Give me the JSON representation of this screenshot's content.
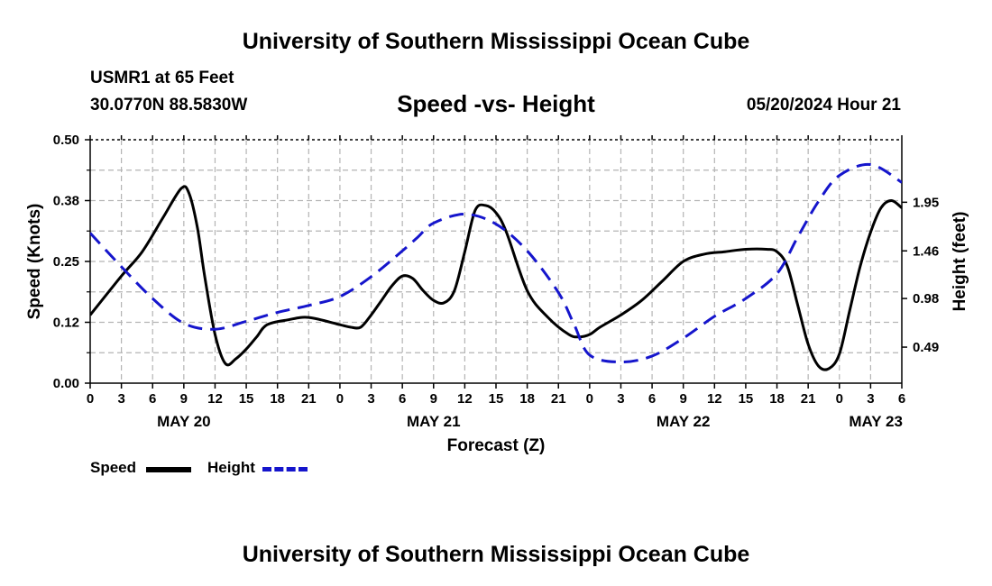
{
  "header": {
    "title": "University of Southern Mississippi Ocean Cube",
    "station_name": "USMR1 at 65 Feet",
    "coordinates": "30.0770N  88.5830W",
    "subtitle": "Speed -vs- Height",
    "datetime": "05/20/2024 Hour 21"
  },
  "footer": {
    "title": "University of Southern Mississippi Ocean Cube"
  },
  "legend": {
    "speed_label": "Speed",
    "height_label": "Height"
  },
  "colors": {
    "speed": "#000000",
    "height": "#1515cc",
    "grid": "#b4b4b4"
  },
  "chart_data": {
    "type": "line",
    "title": "Speed -vs- Height",
    "xlabel": "Forecast (Z)",
    "ylabel": "Speed (Knots)",
    "y2label": "Height (feet)",
    "x_unit": "hours since 00Z May 20",
    "xlim": [
      0,
      78
    ],
    "ylim": [
      0,
      0.5
    ],
    "y2lim": [
      0.127,
      2.58
    ],
    "y_ticks": [
      0,
      0.125,
      0.25,
      0.375,
      0.5
    ],
    "y_tick_labels": [
      "0.00",
      "0.12",
      "0.25",
      "0.38",
      "0.50"
    ],
    "y2_ticks": [
      0.49,
      0.98,
      1.46,
      1.95
    ],
    "y2_tick_labels": [
      "0.49",
      "0.98",
      "1.46",
      "1.95"
    ],
    "x_ticks": [
      0,
      3,
      6,
      9,
      12,
      15,
      18,
      21,
      24,
      27,
      30,
      33,
      36,
      39,
      42,
      45,
      48,
      51,
      54,
      57,
      60,
      63,
      66,
      69,
      72,
      75,
      78
    ],
    "x_tick_labels": [
      "0",
      "3",
      "6",
      "9",
      "12",
      "15",
      "18",
      "21",
      "0",
      "3",
      "6",
      "9",
      "12",
      "15",
      "18",
      "21",
      "0",
      "3",
      "6",
      "9",
      "12",
      "15",
      "18",
      "21",
      "0",
      "3",
      "6"
    ],
    "day_labels": [
      {
        "x": 9,
        "label": "MAY 20"
      },
      {
        "x": 33,
        "label": "MAY 21"
      },
      {
        "x": 57,
        "label": "MAY 22"
      },
      {
        "x": 75.5,
        "label": "MAY 23"
      }
    ],
    "grid": true,
    "series": [
      {
        "name": "Speed",
        "axis": "left",
        "style": "solid",
        "x": [
          0,
          3,
          5,
          7,
          8.75,
          9.5,
          10.3,
          11,
          12,
          13,
          14,
          15,
          16,
          17,
          19,
          21,
          24,
          25,
          26,
          27,
          28,
          29,
          30,
          31,
          32,
          33,
          34,
          35,
          36,
          37,
          38,
          39,
          40,
          42,
          44,
          46,
          47,
          48,
          49,
          51,
          53,
          55,
          57,
          59,
          61,
          63,
          65,
          66,
          67,
          68,
          69,
          70,
          71,
          72,
          73,
          74,
          75,
          76,
          77,
          78
        ],
        "values": [
          0.14,
          0.22,
          0.27,
          0.34,
          0.4,
          0.39,
          0.32,
          0.22,
          0.1,
          0.04,
          0.05,
          0.07,
          0.095,
          0.12,
          0.13,
          0.135,
          0.12,
          0.115,
          0.115,
          0.14,
          0.17,
          0.2,
          0.22,
          0.215,
          0.19,
          0.17,
          0.165,
          0.19,
          0.27,
          0.355,
          0.365,
          0.35,
          0.31,
          0.19,
          0.135,
          0.1,
          0.095,
          0.1,
          0.115,
          0.14,
          0.17,
          0.21,
          0.25,
          0.265,
          0.27,
          0.275,
          0.275,
          0.27,
          0.24,
          0.16,
          0.08,
          0.035,
          0.03,
          0.06,
          0.15,
          0.24,
          0.31,
          0.36,
          0.375,
          0.36
        ]
      },
      {
        "name": "Height",
        "axis": "right",
        "style": "dashed",
        "x": [
          0,
          3,
          6,
          9,
          12,
          15,
          18,
          21,
          24,
          27,
          30,
          31.5,
          33,
          36,
          39,
          42,
          45,
          46.5,
          48,
          51,
          54,
          57,
          60,
          63,
          66,
          68,
          70,
          72,
          75,
          78
        ],
        "values": [
          1.64,
          1.3,
          0.98,
          0.73,
          0.67,
          0.75,
          0.84,
          0.91,
          1.0,
          1.2,
          1.46,
          1.6,
          1.74,
          1.83,
          1.73,
          1.46,
          1.04,
          0.72,
          0.41,
          0.34,
          0.4,
          0.58,
          0.8,
          0.98,
          1.23,
          1.6,
          1.96,
          2.22,
          2.33,
          2.15
        ]
      }
    ]
  }
}
